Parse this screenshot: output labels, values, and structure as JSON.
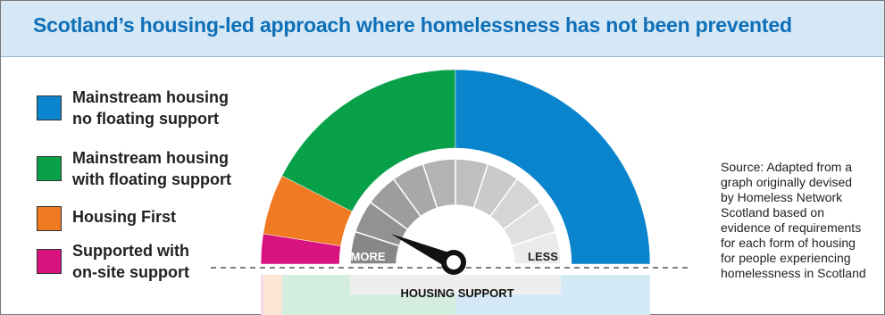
{
  "header": {
    "title": "Scotland’s housing-led approach where homelessness has not been prevented"
  },
  "source_lines": [
    "Source: Adapted from a",
    "graph originally devised",
    "by Homeless Network",
    "Scotland based on",
    "evidence of requirements",
    "for each form of housing",
    "for people experiencing",
    "homelessness in Scotland"
  ],
  "chart_data": {
    "type": "pie",
    "shape": "half-donut",
    "title": "Scotland’s housing-led approach where homelessness has not been prevented",
    "legend_position": "left",
    "slices": [
      {
        "key": "supported",
        "label_lines": [
          "Supported with",
          "on-site support"
        ],
        "value": 5,
        "color": "#d8137f"
      },
      {
        "key": "first",
        "label_lines": [
          "Housing First"
        ],
        "value": 10,
        "color": "#f07a22"
      },
      {
        "key": "floating",
        "label_lines": [
          "Mainstream housing",
          "with floating support"
        ],
        "value": 35,
        "color": "#08a14a"
      },
      {
        "key": "mainstream",
        "label_lines": [
          "Mainstream housing",
          "no floating support"
        ],
        "value": 50,
        "color": "#0a84cc"
      }
    ],
    "legend_order": [
      "mainstream",
      "floating",
      "first",
      "supported"
    ],
    "gauge": {
      "label": "HOUSING SUPPORT",
      "left_label": "MORE",
      "right_label": "LESS",
      "segments": 10,
      "needle_value": 0.14
    }
  }
}
